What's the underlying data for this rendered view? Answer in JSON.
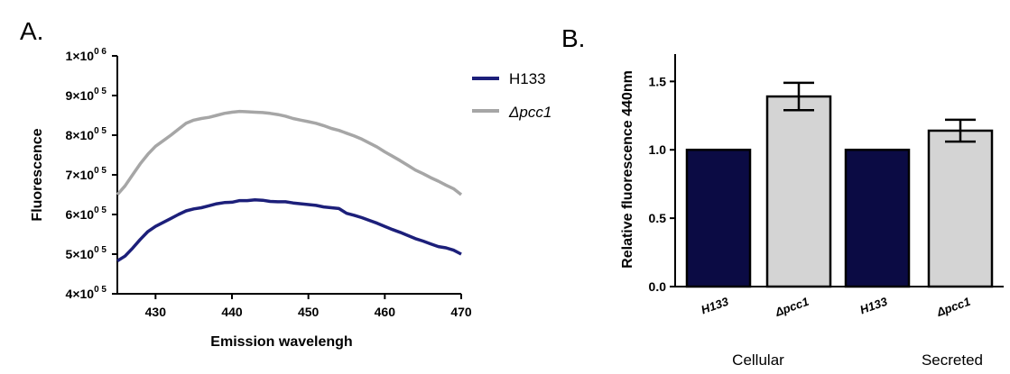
{
  "chart_data": [
    {
      "panel": "A.",
      "type": "line",
      "xlabel": "Emission wavelengh",
      "ylabel": "Fluorescence",
      "xlim": [
        425,
        470
      ],
      "ylim": [
        400000,
        1000000
      ],
      "xticks": [
        430,
        440,
        450,
        460,
        470
      ],
      "yticks": [
        {
          "value": 400000,
          "mantissa": "4×10",
          "exp": "0 5"
        },
        {
          "value": 500000,
          "mantissa": "5×10",
          "exp": "0 5"
        },
        {
          "value": 600000,
          "mantissa": "6×10",
          "exp": "0 5"
        },
        {
          "value": 700000,
          "mantissa": "7×10",
          "exp": "0 5"
        },
        {
          "value": 800000,
          "mantissa": "8×10",
          "exp": "0 5"
        },
        {
          "value": 900000,
          "mantissa": "9×10",
          "exp": "0 5"
        },
        {
          "value": 1000000,
          "mantissa": "1×10",
          "exp": "0 6"
        }
      ],
      "legend_position": "top-right",
      "x": [
        425,
        426,
        427,
        428,
        429,
        430,
        431,
        432,
        433,
        434,
        435,
        436,
        437,
        438,
        439,
        440,
        441,
        442,
        443,
        444,
        445,
        446,
        447,
        448,
        449,
        450,
        451,
        452,
        453,
        454,
        455,
        456,
        457,
        458,
        459,
        460,
        461,
        462,
        463,
        464,
        465,
        466,
        467,
        468,
        469,
        470
      ],
      "series": [
        {
          "name": "H133",
          "italic": false,
          "color": "#1c1f7a",
          "values": [
            483000,
            495000,
            515000,
            537000,
            557000,
            570000,
            580000,
            590000,
            600000,
            609000,
            614000,
            617000,
            622000,
            627000,
            630000,
            631000,
            635000,
            635000,
            637000,
            636000,
            633000,
            632000,
            632000,
            629000,
            627000,
            625000,
            623000,
            619000,
            617000,
            615000,
            603000,
            598000,
            592000,
            585000,
            578000,
            570000,
            562000,
            555000,
            547000,
            539000,
            533000,
            526000,
            519000,
            516000,
            510000,
            500000
          ]
        },
        {
          "name": "Δpcc1",
          "italic": true,
          "color": "#a6a6a6",
          "values": [
            650000,
            672000,
            700000,
            728000,
            752000,
            772000,
            786000,
            800000,
            815000,
            830000,
            838000,
            842000,
            845000,
            850000,
            855000,
            858000,
            860000,
            859000,
            858000,
            857000,
            855000,
            852000,
            848000,
            842000,
            838000,
            834000,
            830000,
            824000,
            817000,
            812000,
            805000,
            798000,
            790000,
            780000,
            770000,
            758000,
            747000,
            736000,
            724000,
            712000,
            703000,
            693000,
            684000,
            674000,
            665000,
            650000
          ]
        }
      ]
    },
    {
      "panel": "B.",
      "type": "bar",
      "ylabel": "Relative fluorescence 440nm",
      "ylim": [
        0,
        1.7
      ],
      "yticks": [
        "0.0",
        "0.5",
        "1.0",
        "1.5"
      ],
      "categories": [
        {
          "label": "H133",
          "value": 1.0,
          "error": 0,
          "color": "#0b0b44"
        },
        {
          "label": "Δpcc1",
          "value": 1.39,
          "error": 0.1,
          "color": "#d4d4d4"
        },
        {
          "label": "H133",
          "value": 1.0,
          "error": 0,
          "color": "#0b0b44"
        },
        {
          "label": "Δpcc1",
          "value": 1.14,
          "error": 0.08,
          "color": "#d4d4d4"
        }
      ],
      "groups": [
        {
          "label": "Cellular",
          "span": [
            0,
            1
          ]
        },
        {
          "label": "Secreted",
          "span": [
            2,
            3
          ]
        }
      ]
    }
  ]
}
